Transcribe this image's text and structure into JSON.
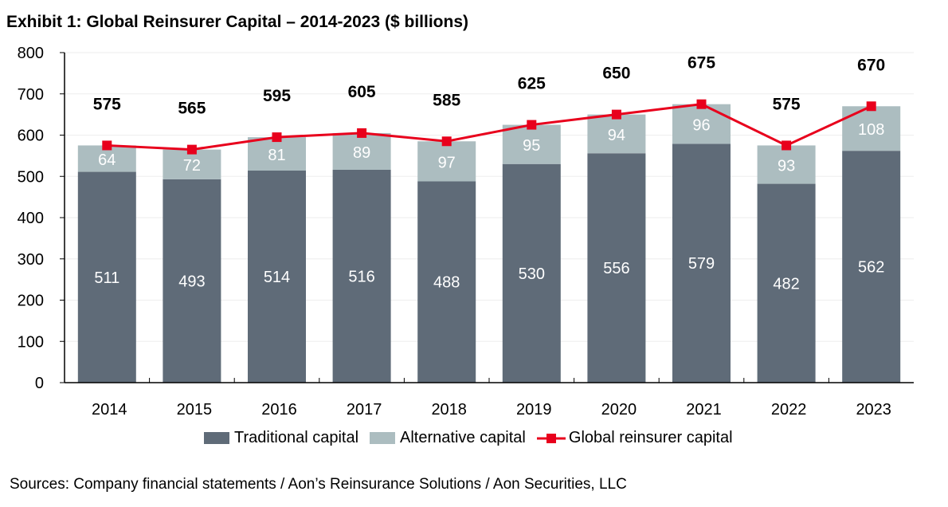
{
  "chart_data": {
    "type": "bar",
    "stacked": true,
    "title": "Exhibit 1: Global Reinsurer Capital – 2014-2023 ($ billions)",
    "categories": [
      "2014",
      "2015",
      "2016",
      "2017",
      "2018",
      "2019",
      "2020",
      "2021",
      "2022",
      "2023"
    ],
    "series": [
      {
        "name": "Traditional capital",
        "type": "bar",
        "color": "#5f6b78",
        "values": [
          511,
          493,
          514,
          516,
          488,
          530,
          556,
          579,
          482,
          562
        ]
      },
      {
        "name": "Alternative capital",
        "type": "bar",
        "color": "#acbdc0",
        "values": [
          64,
          72,
          81,
          89,
          97,
          95,
          94,
          96,
          93,
          108
        ]
      },
      {
        "name": "Global reinsurer capital",
        "type": "line",
        "color": "#e8001c",
        "values": [
          575,
          565,
          595,
          605,
          585,
          625,
          650,
          675,
          575,
          670
        ]
      }
    ],
    "ylim": [
      0,
      800
    ],
    "yticks": [
      0,
      100,
      200,
      300,
      400,
      500,
      600,
      700,
      800
    ],
    "grid": true,
    "legend": "bottom",
    "xlabel": "",
    "ylabel": ""
  },
  "source": "Sources: Company financial statements / Aon’s Reinsurance Solutions / Aon Securities, LLC"
}
